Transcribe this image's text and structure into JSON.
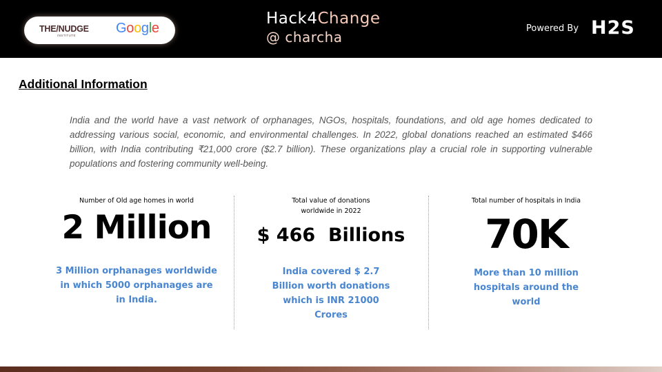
{
  "header": {
    "partner_logo": "THE/NUDGE",
    "partner_logo_sub": "INSTITUTE",
    "google_logo": "Google",
    "event_title_part1": "Hack4",
    "event_title_part2": "Change",
    "event_subtitle": "@ charcha",
    "powered_by": "Powered By",
    "sponsor_logo": "H2S"
  },
  "section": {
    "title": "Additional Information",
    "description": "India and the world have a vast network of orphanages, NGOs, hospitals, foundations, and old age homes dedicated to addressing various social, economic, and environmental challenges. In 2022, global donations reached an estimated $466 billion, with India contributing ₹21,000 crore ($2.7 billion). These organizations play a crucial role in supporting vulnerable populations and fostering community well-being."
  },
  "stats": [
    {
      "label": "Number of Old age homes in world",
      "value": "2 Million",
      "note": "3 Million orphanages worldwide in which 5000 orphanages are in India."
    },
    {
      "label": "Total value of donations worldwide in 2022",
      "value": "$ 466  Billions",
      "note": "India covered $ 2.7 Billion worth donations which is INR 21000 Crores"
    },
    {
      "label": "Total number of hospitals in India",
      "value": "70K",
      "note": "More than 10 million hospitals around the world"
    }
  ],
  "colors": {
    "header_bg": "#000000",
    "accent_blue": "#4a86d0",
    "change_pink": "#f7c9b8"
  }
}
